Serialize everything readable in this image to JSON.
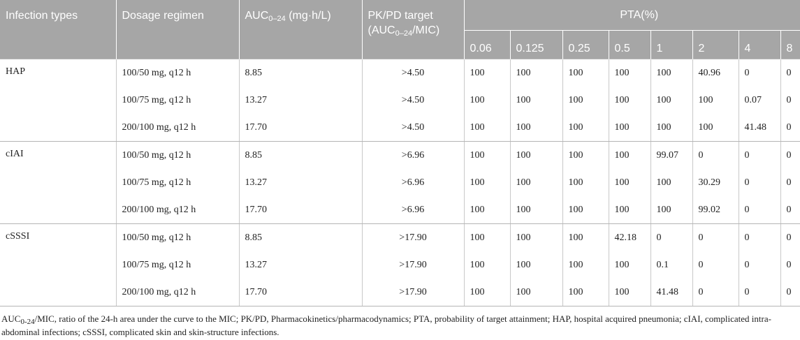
{
  "table": {
    "headers": {
      "infection_types": "Infection types",
      "dosage_regimen": "Dosage regimen",
      "auc_prefix": "AUC",
      "auc_sub": "0–24",
      "auc_suffix": " (mg·h/L)",
      "pkpd_line1": "PK/PD target",
      "pkpd_prefix": "(AUC",
      "pkpd_sub": "0–24",
      "pkpd_suffix": "/MIC)",
      "pta": "PTA(%)",
      "mic_values": [
        "0.06",
        "0.125",
        "0.25",
        "0.5",
        "1",
        "2",
        "4",
        "8"
      ]
    },
    "groups": [
      {
        "infection": "HAP",
        "rows": [
          {
            "dosage": "100/50 mg, q12 h",
            "auc": "8.85",
            "target": ">4.50",
            "pta": [
              "100",
              "100",
              "100",
              "100",
              "100",
              "40.96",
              "0",
              "0"
            ]
          },
          {
            "dosage": "100/75 mg, q12 h",
            "auc": "13.27",
            "target": ">4.50",
            "pta": [
              "100",
              "100",
              "100",
              "100",
              "100",
              "100",
              "0.07",
              "0"
            ]
          },
          {
            "dosage": "200/100 mg, q12 h",
            "auc": "17.70",
            "target": ">4.50",
            "pta": [
              "100",
              "100",
              "100",
              "100",
              "100",
              "100",
              "41.48",
              "0"
            ]
          }
        ]
      },
      {
        "infection": "cIAI",
        "rows": [
          {
            "dosage": "100/50 mg, q12 h",
            "auc": "8.85",
            "target": ">6.96",
            "pta": [
              "100",
              "100",
              "100",
              "100",
              "99.07",
              "0",
              "0",
              "0"
            ]
          },
          {
            "dosage": "100/75 mg, q12 h",
            "auc": "13.27",
            "target": ">6.96",
            "pta": [
              "100",
              "100",
              "100",
              "100",
              "100",
              "30.29",
              "0",
              "0"
            ]
          },
          {
            "dosage": "200/100 mg, q12 h",
            "auc": "17.70",
            "target": ">6.96",
            "pta": [
              "100",
              "100",
              "100",
              "100",
              "100",
              "99.02",
              "0",
              "0"
            ]
          }
        ]
      },
      {
        "infection": "cSSSI",
        "rows": [
          {
            "dosage": "100/50 mg, q12 h",
            "auc": "8.85",
            "target": ">17.90",
            "pta": [
              "100",
              "100",
              "100",
              "42.18",
              "0",
              "0",
              "0",
              "0"
            ]
          },
          {
            "dosage": "100/75 mg, q12 h",
            "auc": "13.27",
            "target": ">17.90",
            "pta": [
              "100",
              "100",
              "100",
              "100",
              "0.1",
              "0",
              "0",
              "0"
            ]
          },
          {
            "dosage": "200/100 mg, q12 h",
            "auc": "17.70",
            "target": ">17.90",
            "pta": [
              "100",
              "100",
              "100",
              "100",
              "41.48",
              "0",
              "0",
              "0"
            ]
          }
        ]
      }
    ]
  },
  "footnote": {
    "auc_prefix": "AUC",
    "auc_sub": "0-24",
    "text_rest": "/MIC, ratio of the 24-h area under the curve to the MIC; PK/PD, Pharmacokinetics/pharmacodynamics; PTA, probability of target attainment; HAP, hospital acquired pneumonia; cIAI, complicated intra-abdominal infections; cSSSI, complicated skin and skin-structure infections."
  }
}
